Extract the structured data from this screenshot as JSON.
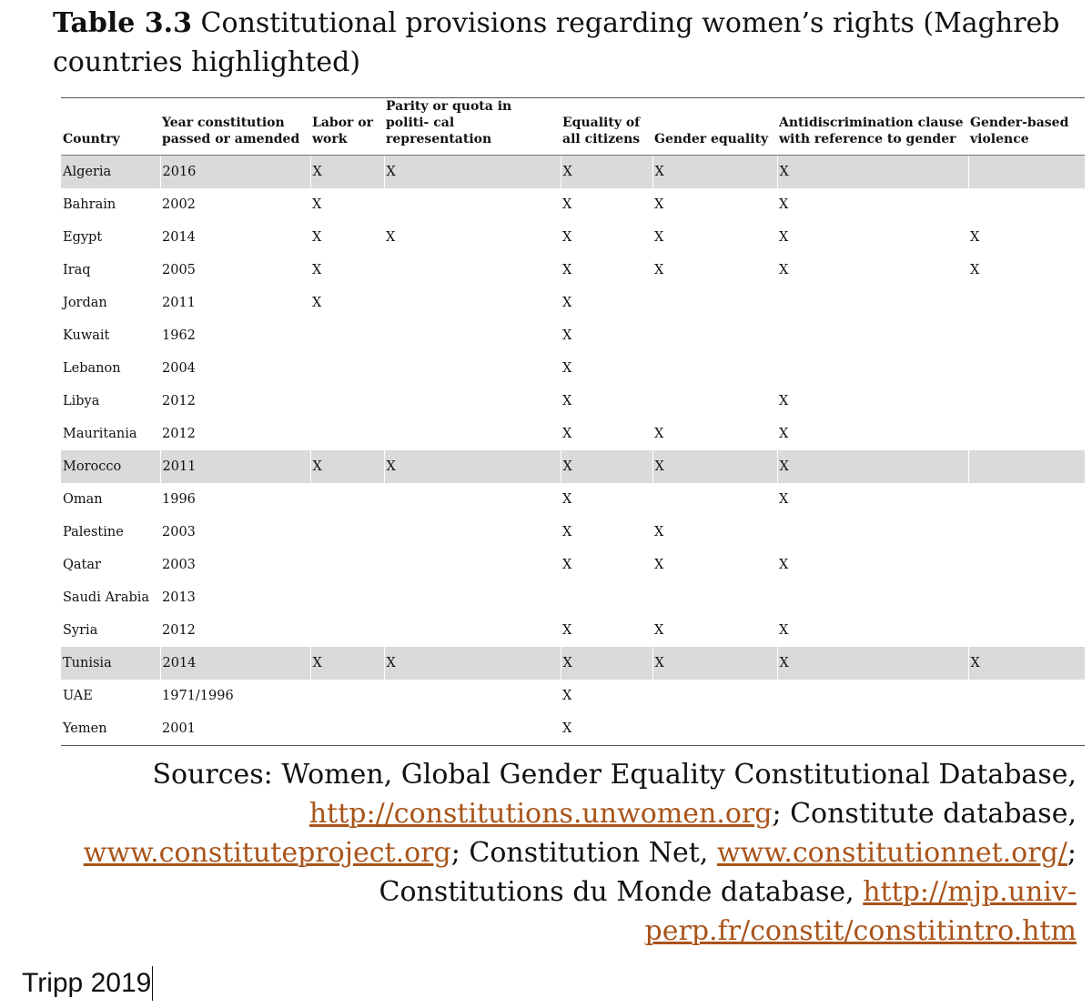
{
  "title": {
    "label": "Table 3.3",
    "text": "Constitutional provisions regarding women’s rights (Maghreb countries highlighted)"
  },
  "table": {
    "columns": [
      "Country",
      "Year constitution passed or amended",
      "Labor or work",
      "Parity or quota in politi- cal representation",
      "Equality of all citizens",
      "Gender equality",
      "Antidiscrimination clause with reference to gender",
      "Gender-based violence"
    ],
    "rows": [
      {
        "highlight": true,
        "cells": [
          "Algeria",
          "2016",
          "X",
          "X",
          "X",
          "X",
          "X",
          ""
        ]
      },
      {
        "highlight": false,
        "cells": [
          "Bahrain",
          "2002",
          "X",
          "",
          "X",
          "X",
          "X",
          ""
        ]
      },
      {
        "highlight": false,
        "cells": [
          "Egypt",
          "2014",
          "X",
          "X",
          "X",
          "X",
          "X",
          "X"
        ]
      },
      {
        "highlight": false,
        "cells": [
          "Iraq",
          "2005",
          "X",
          "",
          "X",
          "X",
          "X",
          "X"
        ]
      },
      {
        "highlight": false,
        "cells": [
          "Jordan",
          "2011",
          "X",
          "",
          "X",
          "",
          "",
          ""
        ]
      },
      {
        "highlight": false,
        "cells": [
          "Kuwait",
          "1962",
          "",
          "",
          "X",
          "",
          "",
          ""
        ]
      },
      {
        "highlight": false,
        "cells": [
          "Lebanon",
          "2004",
          "",
          "",
          "X",
          "",
          "",
          ""
        ]
      },
      {
        "highlight": false,
        "cells": [
          "Libya",
          "2012",
          "",
          "",
          "X",
          "",
          "X",
          ""
        ]
      },
      {
        "highlight": false,
        "cells": [
          "Mauritania",
          "2012",
          "",
          "",
          "X",
          "X",
          "X",
          ""
        ]
      },
      {
        "highlight": true,
        "cells": [
          "Morocco",
          "2011",
          "X",
          "X",
          "X",
          "X",
          "X",
          ""
        ]
      },
      {
        "highlight": false,
        "cells": [
          "Oman",
          "1996",
          "",
          "",
          "X",
          "",
          "X",
          ""
        ]
      },
      {
        "highlight": false,
        "cells": [
          "Palestine",
          "2003",
          "",
          "",
          "X",
          "X",
          "",
          ""
        ]
      },
      {
        "highlight": false,
        "cells": [
          "Qatar",
          "2003",
          "",
          "",
          "X",
          "X",
          "X",
          ""
        ]
      },
      {
        "highlight": false,
        "cells": [
          "Saudi Arabia",
          "2013",
          "",
          "",
          "",
          "",
          "",
          ""
        ]
      },
      {
        "highlight": false,
        "cells": [
          "Syria",
          "2012",
          "",
          "",
          "X",
          "X",
          "X",
          ""
        ]
      },
      {
        "highlight": true,
        "cells": [
          "Tunisia",
          "2014",
          "X",
          "X",
          "X",
          "X",
          "X",
          "X"
        ]
      },
      {
        "highlight": false,
        "cells": [
          "UAE",
          "1971/1996",
          "",
          "",
          "X",
          "",
          "",
          ""
        ]
      },
      {
        "highlight": false,
        "cells": [
          "Yemen",
          "2001",
          "",
          "",
          "X",
          "",
          "",
          ""
        ]
      }
    ],
    "highlight_color": "#d9dadc"
  },
  "sources": {
    "part1": "Sources: Women, Global Gender Equality Constitutional Database, ",
    "link1": "http://constitutions.unwomen.org",
    "part2": "; Constitute database, ",
    "link2": "www.constituteproject.org",
    "part3": "; Constitution Net, ",
    "link3": "www.constitutionnet.org/",
    "part4": "; Constitutions du Monde database, ",
    "link4": "http://mjp.univ-perp.fr/constit/constitintro.htm",
    "link_color": "#a9541a"
  },
  "credit": "Tripp 2019"
}
